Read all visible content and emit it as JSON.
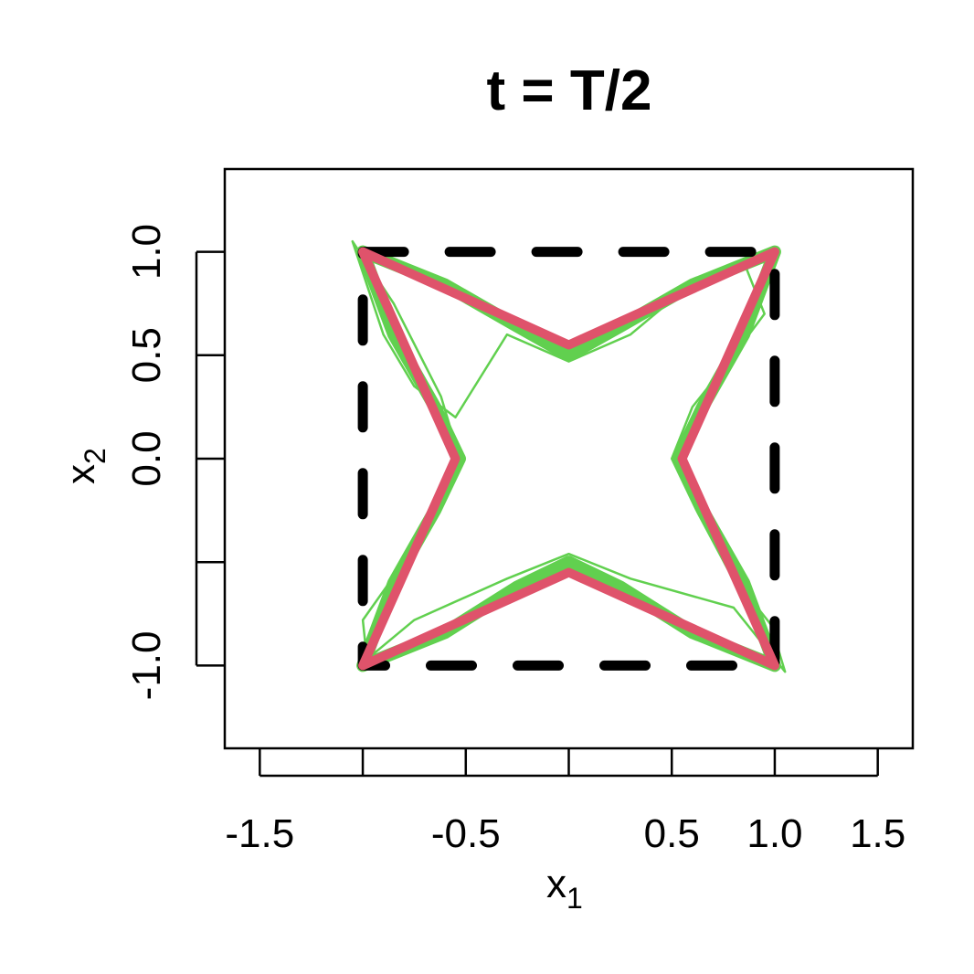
{
  "chart_data": {
    "type": "line",
    "title": "t = T/2",
    "xlabel": "x",
    "xlabel_sub": "1",
    "ylabel": "x",
    "ylabel_sub": "2",
    "xlim": [
      -1.67,
      1.67
    ],
    "ylim": [
      -1.4,
      1.4
    ],
    "xticks": [
      -1.5,
      {
        "value": -1,
        "label": null
      },
      -0.5,
      {
        "value": 0,
        "label": null
      },
      0.5,
      {
        "value": 1,
        "label": "1.0"
      },
      1.5
    ],
    "yticks": [
      {
        "value": -1,
        "label": "-1.0"
      },
      {
        "value": -0.5,
        "label": null
      },
      {
        "value": 0,
        "label": "0.0"
      },
      0.5,
      {
        "value": 1,
        "label": "1.0"
      }
    ],
    "series": [
      {
        "color": "#61d04f",
        "linetype": "solid",
        "x": [
          -1,
          -0.6,
          -0.25,
          0,
          0.25,
          0.6,
          1,
          0.85,
          0.65,
          0.53,
          0.65,
          0.85,
          1,
          0.6,
          0.25,
          0,
          -0.25,
          -0.6,
          -1,
          -0.85,
          -0.65,
          -0.53,
          -0.65,
          -0.85,
          -1
        ],
        "y": [
          1,
          0.84,
          0.64,
          0.5,
          0.64,
          0.84,
          1,
          0.6,
          0.25,
          0,
          -0.25,
          -0.6,
          -1,
          -0.84,
          -0.62,
          -0.5,
          -0.62,
          -0.84,
          -1,
          -0.6,
          -0.25,
          0,
          0.25,
          0.6,
          1
        ]
      },
      {
        "color": "#61d04f",
        "linetype": "solid",
        "x": [
          -1.05,
          -0.9,
          -0.75,
          -0.55,
          -0.3,
          0,
          0.3,
          0.6,
          0.85,
          0.95,
          0.8,
          0.6,
          0.5,
          0.62,
          0.78,
          0.98,
          1.05,
          0.8,
          0.3,
          0,
          -0.3,
          -0.75,
          -0.98,
          -1.0,
          -0.8,
          -0.6,
          -0.53,
          -0.62,
          -0.85,
          -1.05
        ],
        "y": [
          1.05,
          0.6,
          0.35,
          0.2,
          0.6,
          0.47,
          0.6,
          0.85,
          0.95,
          0.7,
          0.5,
          0.25,
          0,
          -0.25,
          -0.55,
          -0.8,
          -1.03,
          -0.72,
          -0.58,
          -0.46,
          -0.58,
          -0.78,
          -0.97,
          -0.78,
          -0.5,
          -0.2,
          0,
          0.3,
          0.75,
          1.05
        ]
      },
      {
        "color": "#000000",
        "linetype": "dashed",
        "x": [
          -1,
          1,
          1,
          -1,
          -1
        ],
        "y": [
          1,
          1,
          -1,
          -1,
          1
        ]
      },
      {
        "color": "#df536b",
        "linetype": "solid",
        "x": [
          -1,
          0,
          1,
          0.55,
          1,
          0,
          -1,
          -0.55,
          -1
        ],
        "y": [
          1,
          0.55,
          1,
          0,
          -1,
          -0.55,
          -1,
          0,
          1
        ]
      }
    ]
  }
}
